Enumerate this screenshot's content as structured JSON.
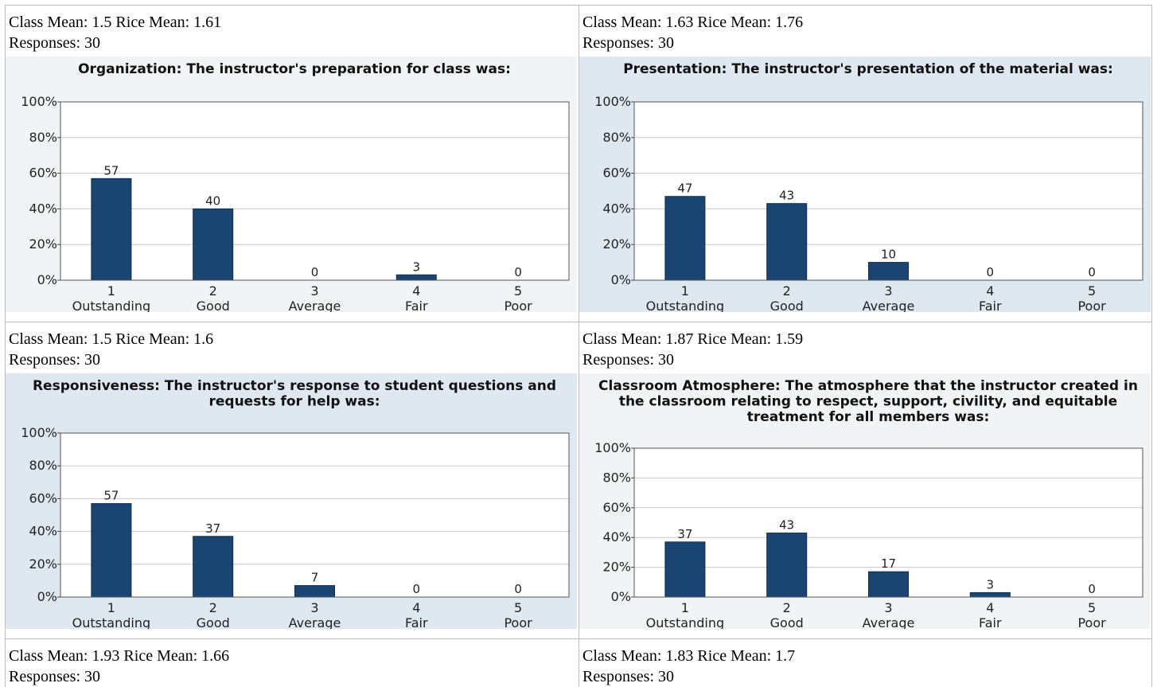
{
  "charts": [
    {
      "stats": "Class Mean: 1.5 Rice Mean: 1.61",
      "responses": "Responses: 30",
      "chart_data": {
        "type": "bar",
        "title_lines": [
          "Organization: The instructor's preparation for class was:"
        ],
        "categories": [
          [
            "1",
            "Outstanding"
          ],
          [
            "2",
            "Good"
          ],
          [
            "3",
            "Average"
          ],
          [
            "4",
            "Fair"
          ],
          [
            "5",
            "Poor"
          ]
        ],
        "values": [
          57,
          40,
          0,
          3,
          0
        ],
        "ylim": [
          0,
          100
        ],
        "yticks": [
          "0%",
          "20%",
          "40%",
          "60%",
          "80%",
          "100%"
        ],
        "grid": true,
        "bar_color": "#1a4573",
        "background": "gray"
      }
    },
    {
      "stats": "Class Mean: 1.63 Rice Mean: 1.76",
      "responses": "Responses: 30",
      "chart_data": {
        "type": "bar",
        "title_lines": [
          "Presentation: The instructor's presentation of the material was:"
        ],
        "categories": [
          [
            "1",
            "Outstanding"
          ],
          [
            "2",
            "Good"
          ],
          [
            "3",
            "Average"
          ],
          [
            "4",
            "Fair"
          ],
          [
            "5",
            "Poor"
          ]
        ],
        "values": [
          47,
          43,
          10,
          0,
          0
        ],
        "ylim": [
          0,
          100
        ],
        "yticks": [
          "0%",
          "20%",
          "40%",
          "60%",
          "80%",
          "100%"
        ],
        "grid": true,
        "bar_color": "#1a4573",
        "background": "blue"
      }
    },
    {
      "stats": "Class Mean: 1.5 Rice Mean: 1.6",
      "responses": "Responses: 30",
      "chart_data": {
        "type": "bar",
        "title_lines": [
          "Responsiveness: The instructor's response to student questions and",
          "requests for help was:"
        ],
        "categories": [
          [
            "1",
            "Outstanding"
          ],
          [
            "2",
            "Good"
          ],
          [
            "3",
            "Average"
          ],
          [
            "4",
            "Fair"
          ],
          [
            "5",
            "Poor"
          ]
        ],
        "values": [
          57,
          37,
          7,
          0,
          0
        ],
        "ylim": [
          0,
          100
        ],
        "yticks": [
          "0%",
          "20%",
          "40%",
          "60%",
          "80%",
          "100%"
        ],
        "grid": true,
        "bar_color": "#1a4573",
        "background": "blue"
      }
    },
    {
      "stats": "Class Mean: 1.87 Rice Mean: 1.59",
      "responses": "Responses: 30",
      "chart_data": {
        "type": "bar",
        "title_lines": [
          "Classroom Atmosphere: The atmosphere that the instructor created in",
          "the classroom relating to respect, support, civility, and equitable",
          "treatment for all members was:"
        ],
        "categories": [
          [
            "1",
            "Outstanding"
          ],
          [
            "2",
            "Good"
          ],
          [
            "3",
            "Average"
          ],
          [
            "4",
            "Fair"
          ],
          [
            "5",
            "Poor"
          ]
        ],
        "values": [
          37,
          43,
          17,
          3,
          0
        ],
        "ylim": [
          0,
          100
        ],
        "yticks": [
          "0%",
          "20%",
          "40%",
          "60%",
          "80%",
          "100%"
        ],
        "grid": true,
        "bar_color": "#1a4573",
        "background": "gray"
      }
    },
    {
      "stats": "Class Mean: 1.93 Rice Mean: 1.66",
      "responses": "Responses: 30"
    },
    {
      "stats": "Class Mean: 1.83 Rice Mean: 1.7",
      "responses": "Responses: 30"
    }
  ]
}
